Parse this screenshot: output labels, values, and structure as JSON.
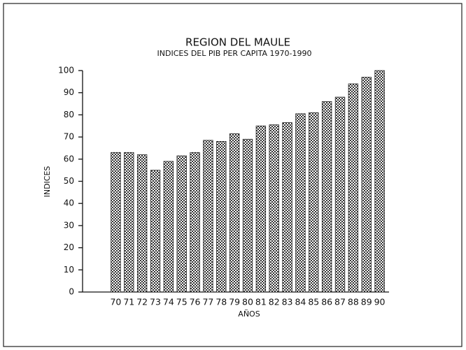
{
  "chart_data": {
    "type": "bar",
    "title": "REGION DEL MAULE",
    "subtitle": "INDICES DEL PIB PER CAPITA 1970-1990",
    "y_label": "INDICES",
    "x_label": "AÑOS",
    "categories": [
      "70",
      "71",
      "72",
      "73",
      "74",
      "75",
      "76",
      "77",
      "78",
      "79",
      "80",
      "81",
      "82",
      "83",
      "84",
      "85",
      "86",
      "87",
      "88",
      "89",
      "90"
    ],
    "values": [
      63,
      63,
      62,
      55,
      59,
      61.5,
      63,
      68.5,
      68,
      71.5,
      69,
      75,
      75.5,
      76.5,
      80.5,
      81,
      86,
      88,
      94,
      97,
      100
    ],
    "color": "#222222",
    "ylim": [
      0,
      100
    ],
    "yticks": [
      0,
      10,
      20,
      30,
      40,
      50,
      60,
      70,
      80,
      90,
      100
    ],
    "grid": false
  }
}
